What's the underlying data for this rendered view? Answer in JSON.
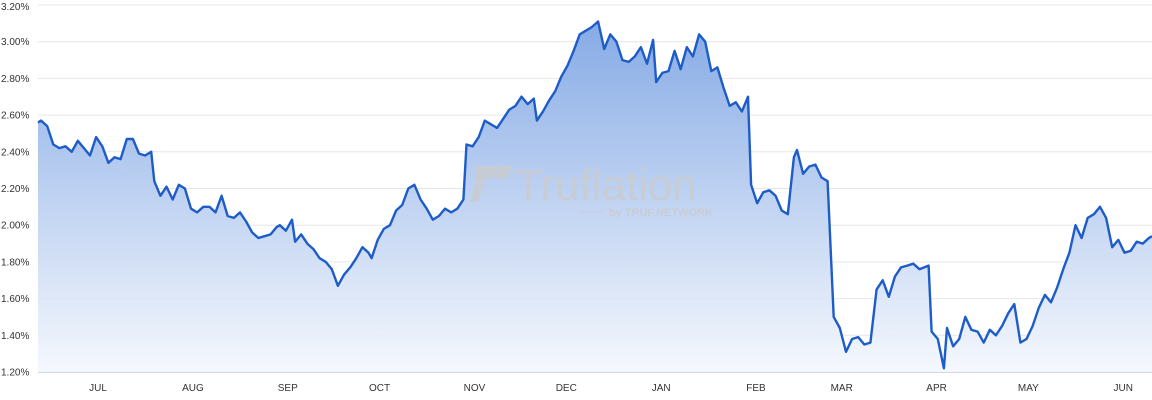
{
  "chart_data": {
    "type": "area",
    "title": "",
    "xlabel": "",
    "ylabel": "",
    "ylim": [
      1.2,
      3.2
    ],
    "grid": true,
    "y_ticks": [
      "1.20%",
      "1.40%",
      "1.60%",
      "1.80%",
      "2.00%",
      "2.20%",
      "2.40%",
      "2.60%",
      "2.80%",
      "3.00%",
      "3.20%"
    ],
    "y_tick_values": [
      1.2,
      1.4,
      1.6,
      1.8,
      2.0,
      2.2,
      2.4,
      2.6,
      2.8,
      3.0,
      3.2
    ],
    "x_ticks": [
      "JUL",
      "AUG",
      "SEP",
      "OCT",
      "NOV",
      "DEC",
      "JAN",
      "FEB",
      "MAR",
      "APR",
      "MAY",
      "JUN"
    ],
    "x_tick_dates": [
      "07-01",
      "08-01",
      "09-01",
      "10-01",
      "11-01",
      "12-01",
      "01-01",
      "02-01",
      "03-01",
      "04-01",
      "05-01",
      "06-01"
    ],
    "x_range": [
      "06-14",
      "06-13"
    ],
    "series": [
      {
        "color": "#1e5cc8",
        "fill_top": "#7fa6e4",
        "fill_bottom": "#f4f7fd",
        "points": [
          [
            "06-14",
            2.56
          ],
          [
            "06-15",
            2.57
          ],
          [
            "06-17",
            2.54
          ],
          [
            "06-19",
            2.44
          ],
          [
            "06-21",
            2.42
          ],
          [
            "06-23",
            2.43
          ],
          [
            "06-25",
            2.4
          ],
          [
            "06-27",
            2.46
          ],
          [
            "06-29",
            2.42
          ],
          [
            "07-01",
            2.38
          ],
          [
            "07-03",
            2.48
          ],
          [
            "07-05",
            2.43
          ],
          [
            "07-07",
            2.34
          ],
          [
            "07-09",
            2.37
          ],
          [
            "07-11",
            2.36
          ],
          [
            "07-13",
            2.47
          ],
          [
            "07-15",
            2.47
          ],
          [
            "07-17",
            2.39
          ],
          [
            "07-19",
            2.38
          ],
          [
            "07-21",
            2.4
          ],
          [
            "07-22",
            2.24
          ],
          [
            "07-24",
            2.16
          ],
          [
            "07-26",
            2.21
          ],
          [
            "07-28",
            2.14
          ],
          [
            "07-30",
            2.22
          ],
          [
            "08-01",
            2.2
          ],
          [
            "08-03",
            2.09
          ],
          [
            "08-05",
            2.07
          ],
          [
            "08-07",
            2.1
          ],
          [
            "08-09",
            2.1
          ],
          [
            "08-11",
            2.07
          ],
          [
            "08-13",
            2.16
          ],
          [
            "08-15",
            2.05
          ],
          [
            "08-17",
            2.04
          ],
          [
            "08-19",
            2.07
          ],
          [
            "08-21",
            2.02
          ],
          [
            "08-23",
            1.96
          ],
          [
            "08-25",
            1.93
          ],
          [
            "08-27",
            1.94
          ],
          [
            "08-29",
            1.95
          ],
          [
            "08-31",
            1.99
          ],
          [
            "09-01",
            2.0
          ],
          [
            "09-03",
            1.97
          ],
          [
            "09-05",
            2.03
          ],
          [
            "09-06",
            1.91
          ],
          [
            "09-08",
            1.95
          ],
          [
            "09-10",
            1.9
          ],
          [
            "09-12",
            1.87
          ],
          [
            "09-14",
            1.82
          ],
          [
            "09-16",
            1.8
          ],
          [
            "09-18",
            1.76
          ],
          [
            "09-20",
            1.67
          ],
          [
            "09-22",
            1.73
          ],
          [
            "09-24",
            1.77
          ],
          [
            "09-26",
            1.82
          ],
          [
            "09-28",
            1.88
          ],
          [
            "09-30",
            1.85
          ],
          [
            "10-01",
            1.82
          ],
          [
            "10-03",
            1.92
          ],
          [
            "10-05",
            1.98
          ],
          [
            "10-07",
            2.0
          ],
          [
            "10-09",
            2.08
          ],
          [
            "10-11",
            2.11
          ],
          [
            "10-13",
            2.2
          ],
          [
            "10-15",
            2.22
          ],
          [
            "10-17",
            2.14
          ],
          [
            "10-19",
            2.09
          ],
          [
            "10-21",
            2.03
          ],
          [
            "10-23",
            2.05
          ],
          [
            "10-25",
            2.09
          ],
          [
            "10-27",
            2.07
          ],
          [
            "10-29",
            2.09
          ],
          [
            "10-31",
            2.14
          ],
          [
            "11-01",
            2.44
          ],
          [
            "11-03",
            2.43
          ],
          [
            "11-05",
            2.48
          ],
          [
            "11-07",
            2.57
          ],
          [
            "11-09",
            2.55
          ],
          [
            "11-11",
            2.53
          ],
          [
            "11-13",
            2.58
          ],
          [
            "11-15",
            2.63
          ],
          [
            "11-17",
            2.65
          ],
          [
            "11-19",
            2.7
          ],
          [
            "11-21",
            2.66
          ],
          [
            "11-23",
            2.69
          ],
          [
            "11-24",
            2.57
          ],
          [
            "11-26",
            2.62
          ],
          [
            "11-28",
            2.68
          ],
          [
            "11-30",
            2.73
          ],
          [
            "12-02",
            2.81
          ],
          [
            "12-04",
            2.87
          ],
          [
            "12-06",
            2.95
          ],
          [
            "12-08",
            3.04
          ],
          [
            "12-10",
            3.06
          ],
          [
            "12-12",
            3.08
          ],
          [
            "12-14",
            3.11
          ],
          [
            "12-16",
            2.96
          ],
          [
            "12-18",
            3.04
          ],
          [
            "12-20",
            3.0
          ],
          [
            "12-22",
            2.9
          ],
          [
            "12-24",
            2.89
          ],
          [
            "12-26",
            2.92
          ],
          [
            "12-28",
            2.97
          ],
          [
            "12-30",
            2.88
          ],
          [
            "01-01",
            3.01
          ],
          [
            "01-02",
            2.78
          ],
          [
            "01-04",
            2.83
          ],
          [
            "01-06",
            2.84
          ],
          [
            "01-08",
            2.95
          ],
          [
            "01-10",
            2.85
          ],
          [
            "01-12",
            2.97
          ],
          [
            "01-14",
            2.92
          ],
          [
            "01-16",
            3.04
          ],
          [
            "01-18",
            3.0
          ],
          [
            "01-20",
            2.84
          ],
          [
            "01-22",
            2.86
          ],
          [
            "01-24",
            2.75
          ],
          [
            "01-26",
            2.65
          ],
          [
            "01-28",
            2.67
          ],
          [
            "01-30",
            2.62
          ],
          [
            "02-01",
            2.7
          ],
          [
            "02-02",
            2.22
          ],
          [
            "02-04",
            2.12
          ],
          [
            "02-06",
            2.18
          ],
          [
            "02-08",
            2.19
          ],
          [
            "02-10",
            2.16
          ],
          [
            "02-12",
            2.08
          ],
          [
            "02-14",
            2.06
          ],
          [
            "02-16",
            2.37
          ],
          [
            "02-17",
            2.41
          ],
          [
            "02-19",
            2.28
          ],
          [
            "02-21",
            2.32
          ],
          [
            "02-23",
            2.33
          ],
          [
            "02-25",
            2.26
          ],
          [
            "02-27",
            2.24
          ],
          [
            "03-01",
            1.5
          ],
          [
            "03-03",
            1.44
          ],
          [
            "03-05",
            1.31
          ],
          [
            "03-07",
            1.38
          ],
          [
            "03-09",
            1.39
          ],
          [
            "03-11",
            1.35
          ],
          [
            "03-13",
            1.36
          ],
          [
            "03-15",
            1.65
          ],
          [
            "03-17",
            1.7
          ],
          [
            "03-19",
            1.61
          ],
          [
            "03-21",
            1.72
          ],
          [
            "03-23",
            1.77
          ],
          [
            "03-25",
            1.78
          ],
          [
            "03-27",
            1.79
          ],
          [
            "03-29",
            1.76
          ],
          [
            "04-01",
            1.78
          ],
          [
            "04-02",
            1.42
          ],
          [
            "04-04",
            1.38
          ],
          [
            "04-06",
            1.22
          ],
          [
            "04-07",
            1.44
          ],
          [
            "04-09",
            1.34
          ],
          [
            "04-11",
            1.38
          ],
          [
            "04-13",
            1.5
          ],
          [
            "04-15",
            1.43
          ],
          [
            "04-17",
            1.42
          ],
          [
            "04-19",
            1.36
          ],
          [
            "04-21",
            1.43
          ],
          [
            "04-23",
            1.4
          ],
          [
            "04-25",
            1.45
          ],
          [
            "04-27",
            1.52
          ],
          [
            "04-29",
            1.57
          ],
          [
            "05-01",
            1.36
          ],
          [
            "05-03",
            1.38
          ],
          [
            "05-05",
            1.45
          ],
          [
            "05-07",
            1.55
          ],
          [
            "05-09",
            1.62
          ],
          [
            "05-11",
            1.58
          ],
          [
            "05-13",
            1.66
          ],
          [
            "05-15",
            1.76
          ],
          [
            "05-17",
            1.85
          ],
          [
            "05-19",
            2.0
          ],
          [
            "05-21",
            1.93
          ],
          [
            "05-23",
            2.04
          ],
          [
            "05-25",
            2.06
          ],
          [
            "05-27",
            2.1
          ],
          [
            "05-29",
            2.04
          ],
          [
            "05-31",
            1.88
          ],
          [
            "06-02",
            1.92
          ],
          [
            "06-04",
            1.85
          ],
          [
            "06-06",
            1.86
          ],
          [
            "06-08",
            1.91
          ],
          [
            "06-10",
            1.9
          ],
          [
            "06-12",
            1.93
          ],
          [
            "06-13",
            1.94
          ]
        ]
      }
    ]
  },
  "watermark": {
    "brand": "Truflation",
    "tagline": "by TRUF.NETWORK"
  }
}
